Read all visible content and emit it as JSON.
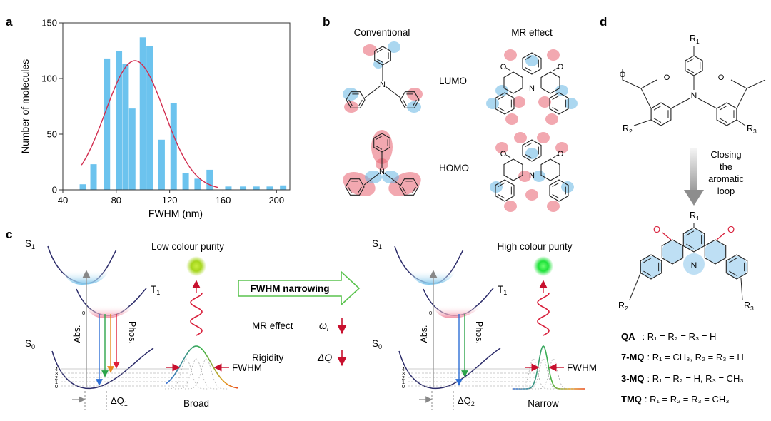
{
  "panels": {
    "a": "a",
    "b": "b",
    "c": "c",
    "d": "d"
  },
  "chart_data": {
    "type": "bar",
    "xlabel": "FWHM (nm)",
    "ylabel": "Number of molecules",
    "xlim": [
      40,
      210
    ],
    "ylim": [
      0,
      150
    ],
    "xticks": [
      "40",
      "80",
      "120",
      "160",
      "200"
    ],
    "yticks": [
      "0",
      "50",
      "100",
      "150"
    ],
    "bar_color": "#6cc3ee",
    "fit_color": "#d22e50",
    "x": [
      55,
      63,
      73,
      82,
      87,
      92,
      100,
      105,
      114,
      123,
      132,
      141,
      150,
      164,
      175,
      185,
      195,
      205
    ],
    "values": [
      5,
      23,
      118,
      125,
      113,
      73,
      137,
      129,
      45,
      78,
      15,
      10,
      18,
      3,
      3,
      3,
      3,
      4
    ],
    "fit": {
      "type": "gaussian",
      "center": 94,
      "amplitude": 116,
      "sigma": 22,
      "x_range": [
        54,
        156
      ]
    }
  },
  "panel_b": {
    "col_left": "Conventional",
    "col_right": "MR effect",
    "row_top": "LUMO",
    "row_bottom": "HOMO",
    "atom_n": "N",
    "atom_o": "O"
  },
  "panel_c": {
    "left": {
      "title": "Low colour purity",
      "s1": "S",
      "s1_sub": "1",
      "t1": "T",
      "t1_sub": "1",
      "s0": "S",
      "s0_sub": "0",
      "abs": "Abs.",
      "phos": "Phos.",
      "fwhm": "FWHM",
      "width_label": "Broad",
      "dq": "ΔQ",
      "dq_sub": "1",
      "glow_color": "#a6d61c",
      "levels": [
        "4",
        "3",
        "2",
        "1",
        "0"
      ],
      "t1_zero": "0"
    },
    "right": {
      "title": "High colour purity",
      "s1": "S",
      "s1_sub": "1",
      "t1": "T",
      "t1_sub": "1",
      "s0": "S",
      "s0_sub": "0",
      "abs": "Abs.",
      "phos": "Phos.",
      "fwhm": "FWHM",
      "width_label": "Narrow",
      "dq": "ΔQ",
      "dq_sub": "2",
      "glow_color": "#1fe23a",
      "levels": [
        "4",
        "3",
        "2",
        "1",
        "0"
      ],
      "t1_zero": "0"
    },
    "arrow_label": "FWHM narrowing",
    "mr_label": "MR effect",
    "mr_symbol": "ω",
    "mr_sub": "i",
    "rigidity_label": "Rigidity",
    "rigidity_symbol": "ΔQ"
  },
  "panel_d": {
    "r1": "R",
    "r1_sub": "1",
    "r2": "R",
    "r2_sub": "2",
    "r3": "R",
    "r3_sub": "3",
    "n": "N",
    "o": "O",
    "arrow_text": [
      "Closing",
      "the",
      "aromatic",
      "loop"
    ],
    "compounds": [
      {
        "name": "QA",
        "formula": ": R₁ = R₂ = R₃ = H"
      },
      {
        "name": "7-MQ",
        "formula": ": R₁ = CH₃, R₂ = R₃ = H"
      },
      {
        "name": "3-MQ",
        "formula": ": R₁ = R₂ = H, R₃ = CH₃"
      },
      {
        "name": "TMQ",
        "formula": ": R₁ = R₂ = R₃ = CH₃"
      }
    ]
  }
}
